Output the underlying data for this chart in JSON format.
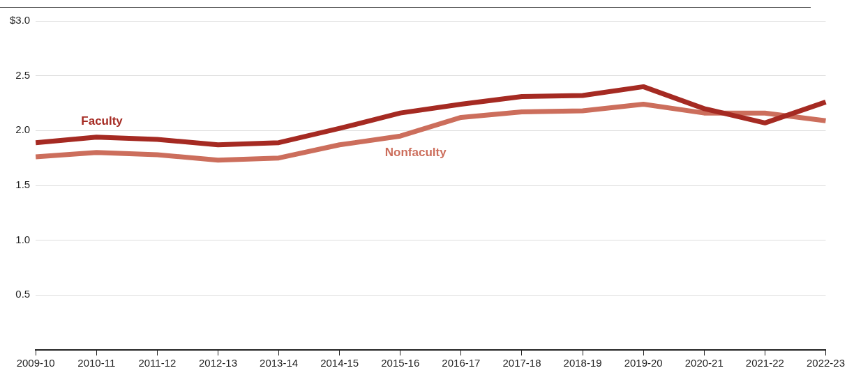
{
  "chart_data": {
    "type": "line",
    "categories": [
      "2009-10",
      "2010-11",
      "2011-12",
      "2012-13",
      "2013-14",
      "2014-15",
      "2015-16",
      "2016-17",
      "2017-18",
      "2018-19",
      "2019-20",
      "2020-21",
      "2021-22",
      "2022-23"
    ],
    "series": [
      {
        "name": "Faculty",
        "color": "#a52a22",
        "values": [
          1.89,
          1.94,
          1.92,
          1.87,
          1.89,
          2.02,
          2.16,
          2.24,
          2.31,
          2.32,
          2.4,
          2.2,
          2.07,
          2.26
        ]
      },
      {
        "name": "Nonfaculty",
        "color": "#cc6e5c",
        "values": [
          1.76,
          1.8,
          1.78,
          1.73,
          1.75,
          1.87,
          1.95,
          2.12,
          2.17,
          2.18,
          2.24,
          2.16,
          2.16,
          2.09
        ]
      }
    ],
    "ylim": [
      0,
      3
    ],
    "yticks": [
      0.5,
      {
        "value": 1,
        "label": "1.0"
      },
      1.5,
      {
        "value": 2,
        "label": "2.0"
      },
      2.5,
      {
        "value": 3,
        "label": "$3.0"
      }
    ],
    "grid": "y",
    "legend": false,
    "marker": "none",
    "line_style": "solid"
  }
}
